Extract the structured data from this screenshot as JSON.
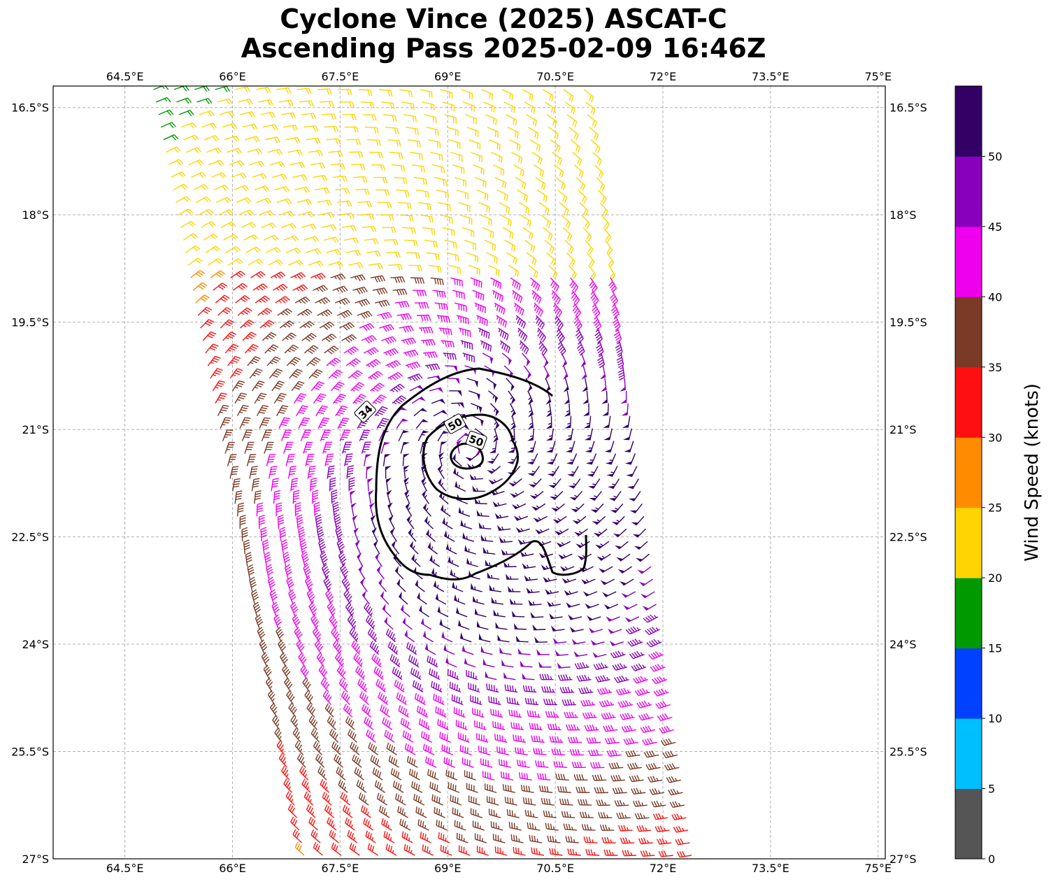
{
  "chart_data": {
    "type": "map",
    "title": "Cyclone Vince (2025) ASCAT-C",
    "subtitle": "Ascending Pass 2025-02-09 16:46Z",
    "lon_range": [
      63.5,
      75.1
    ],
    "lat_range": [
      -27,
      -16.2
    ],
    "lon_ticks": [
      "64.5°E",
      "66°E",
      "67.5°E",
      "69°E",
      "70.5°E",
      "72°E",
      "73.5°E",
      "75°E"
    ],
    "lon_tick_values": [
      64.5,
      66,
      67.5,
      69,
      70.5,
      72,
      73.5,
      75
    ],
    "lat_ticks": [
      "16.5°S",
      "18°S",
      "19.5°S",
      "21°S",
      "22.5°S",
      "24°S",
      "25.5°S",
      "27°S"
    ],
    "lat_tick_values": [
      -16.5,
      -18,
      -19.5,
      -21,
      -22.5,
      -24,
      -25.5,
      -27
    ],
    "grid": true,
    "colorbar": {
      "label": "Wind Speed (knots)",
      "bounds": [
        0,
        5,
        10,
        15,
        20,
        25,
        30,
        35,
        40,
        45,
        50,
        55
      ],
      "tick_labels": [
        "0",
        "5",
        "10",
        "15",
        "20",
        "25",
        "30",
        "35",
        "40",
        "45",
        "50"
      ],
      "colors": [
        "#555555",
        "#00bfff",
        "#0040ff",
        "#009900",
        "#ffd500",
        "#ff8c00",
        "#ff1010",
        "#7a3a26",
        "#ee00ee",
        "#8800bb",
        "#330066"
      ]
    },
    "contours": [
      {
        "level": "34",
        "label_lon": 67.85,
        "label_lat": -20.75,
        "label_angle": -45
      },
      {
        "level": "50",
        "label_lon": 69.1,
        "label_lat": -20.92,
        "label_angle": -30
      },
      {
        "level": "50",
        "label_lon": 69.4,
        "label_lat": -21.15,
        "label_angle": 20
      }
    ],
    "cyclone_center": {
      "lon": 69.3,
      "lat": -21.25
    },
    "swath": {
      "corners_nw": [
        64.9,
        -16.2
      ],
      "corners_ne": [
        70.9,
        -16.2
      ],
      "corners_se": [
        72.4,
        -27
      ],
      "corners_sw": [
        67.0,
        -27
      ]
    },
    "wind_field": "barbs, cyclonic (clockwise, southern hemisphere), speeds increase toward center from ~10 kt at outer swath to ~55 kt near eye"
  }
}
